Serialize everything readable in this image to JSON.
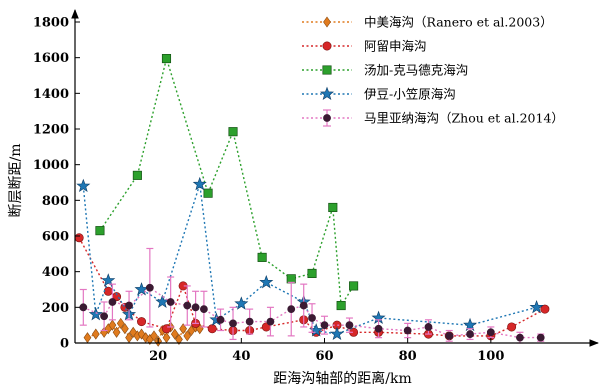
{
  "chart_data": {
    "type": "scatter",
    "xlabel": "距海沟轴部的距离/km",
    "ylabel": "断层断距/m",
    "xlim": [
      0,
      120
    ],
    "ylim": [
      0,
      1800
    ],
    "x_ticks": [
      20,
      40,
      60,
      80,
      100
    ],
    "y_ticks": [
      0,
      200,
      400,
      600,
      800,
      1000,
      1200,
      1400,
      1600,
      1800
    ],
    "arrows": true,
    "legend_position": "top-right",
    "series": [
      {
        "name": "中美海沟（Ranero et al.2003）",
        "color": "#e07b1e",
        "marker": "diamond",
        "line": "dotted",
        "points": [
          [
            3,
            30
          ],
          [
            5,
            50
          ],
          [
            7,
            60
          ],
          [
            8,
            80
          ],
          [
            9,
            100
          ],
          [
            10,
            60
          ],
          [
            11,
            110
          ],
          [
            12,
            80
          ],
          [
            13,
            30
          ],
          [
            14,
            60
          ],
          [
            15,
            40
          ],
          [
            16,
            50
          ],
          [
            17,
            30
          ],
          [
            18,
            20
          ],
          [
            19,
            40
          ],
          [
            20,
            10
          ],
          [
            21,
            70
          ],
          [
            22,
            30
          ],
          [
            23,
            90
          ],
          [
            24,
            50
          ],
          [
            25,
            20
          ],
          [
            26,
            80
          ],
          [
            27,
            40
          ],
          [
            28,
            70
          ],
          [
            29,
            90
          ],
          [
            30,
            80
          ]
        ]
      },
      {
        "name": "阿留申海沟",
        "color": "#d62728",
        "marker": "circle",
        "line": "dotted",
        "points": [
          [
            1,
            590
          ],
          [
            8,
            290
          ],
          [
            10,
            260
          ],
          [
            12,
            200
          ],
          [
            16,
            120
          ],
          [
            22,
            80
          ],
          [
            26,
            320
          ],
          [
            29,
            110
          ],
          [
            33,
            80
          ],
          [
            38,
            70
          ],
          [
            42,
            70
          ],
          [
            46,
            90
          ],
          [
            55,
            130
          ],
          [
            58,
            60
          ],
          [
            63,
            100
          ],
          [
            67,
            60
          ],
          [
            73,
            60
          ],
          [
            85,
            50
          ],
          [
            90,
            40
          ],
          [
            100,
            40
          ],
          [
            105,
            90
          ],
          [
            113,
            190
          ]
        ]
      },
      {
        "name": "汤加-克马德克海沟",
        "color": "#2ca02c",
        "marker": "square",
        "line": "dotted",
        "points": [
          [
            6,
            630
          ],
          [
            15,
            940
          ],
          [
            22,
            1595
          ],
          [
            32,
            840
          ],
          [
            38,
            1185
          ],
          [
            45,
            480
          ],
          [
            52,
            360
          ],
          [
            57,
            390
          ],
          [
            62,
            760
          ],
          [
            64,
            210
          ],
          [
            67,
            320
          ]
        ]
      },
      {
        "name": "伊豆-小笠原海沟",
        "color": "#1f77b4",
        "marker": "star",
        "line": "dotted",
        "points": [
          [
            2,
            880
          ],
          [
            5,
            160
          ],
          [
            8,
            350
          ],
          [
            13,
            160
          ],
          [
            16,
            300
          ],
          [
            21,
            230
          ],
          [
            30,
            890
          ],
          [
            34,
            130
          ],
          [
            40,
            220
          ],
          [
            46,
            340
          ],
          [
            55,
            230
          ],
          [
            58,
            70
          ],
          [
            63,
            50
          ],
          [
            73,
            140
          ],
          [
            95,
            100
          ],
          [
            111,
            200
          ]
        ]
      },
      {
        "name": "马里亚纳海沟（Zhou et al.2014）",
        "color": "#e377c2",
        "marker": "circle-dark",
        "line": "dotted",
        "errorbars": true,
        "points": [
          [
            2,
            200,
            100
          ],
          [
            7,
            150,
            80
          ],
          [
            9,
            230,
            100
          ],
          [
            13,
            210,
            80
          ],
          [
            18,
            310,
            220
          ],
          [
            23,
            230,
            140
          ],
          [
            27,
            210,
            110
          ],
          [
            29,
            200,
            90
          ],
          [
            31,
            190,
            100
          ],
          [
            35,
            130,
            60
          ],
          [
            38,
            110,
            90
          ],
          [
            42,
            120,
            70
          ],
          [
            47,
            120,
            80
          ],
          [
            52,
            190,
            150
          ],
          [
            55,
            210,
            120
          ],
          [
            57,
            140,
            80
          ],
          [
            60,
            100,
            50
          ],
          [
            66,
            100,
            40
          ],
          [
            73,
            80,
            50
          ],
          [
            80,
            70,
            40
          ],
          [
            85,
            90,
            40
          ],
          [
            90,
            40,
            30
          ],
          [
            95,
            50,
            30
          ],
          [
            100,
            60,
            30
          ],
          [
            107,
            30,
            30
          ],
          [
            112,
            30,
            20
          ]
        ]
      }
    ]
  }
}
